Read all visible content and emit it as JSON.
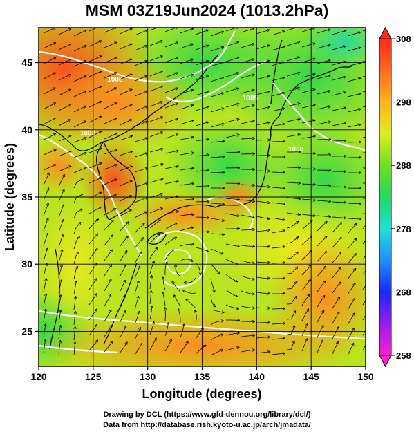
{
  "title": "MSM 03Z19Jun2024 (1013.2hPa)",
  "credits": {
    "line1": "Drawing by DCL (https://www.gfd-dennou.org/library/dcl/)",
    "line2": "Data from http://database.rish.kyoto-u.ac.jp/arch/jmadata/"
  },
  "chart_data": {
    "type": "heatmap",
    "title": "MSM 03Z19Jun2024 (1013.2hPa)",
    "xlabel": "Longitude (degrees)",
    "ylabel": "Latitude  (degrees)",
    "xlim": [
      120,
      150
    ],
    "ylim": [
      22.4,
      47.6
    ],
    "xticks": [
      120,
      125,
      130,
      135,
      140,
      145,
      150
    ],
    "yticks": [
      25,
      30,
      35,
      40,
      45
    ],
    "grid": true,
    "colorbar": {
      "ticks": [
        258,
        268,
        278,
        288,
        298,
        308
      ],
      "range": [
        258,
        308
      ],
      "colors": [
        "#ff1fd0",
        "#9a1cf0",
        "#1b29ff",
        "#1ea0ff",
        "#1fe0d8",
        "#27d83a",
        "#7fe01e",
        "#e6ee1e",
        "#ffb21e",
        "#ff6a1e",
        "#ff2a1e"
      ]
    },
    "pressure_contours": [
      {
        "label": "1002",
        "lon": 124.5,
        "lat": 39.6
      },
      {
        "label": "1005",
        "lon": 139.4,
        "lat": 42.2
      },
      {
        "label": "1008",
        "lon": 127.0,
        "lat": 43.6
      },
      {
        "label": "1008",
        "lon": 143.6,
        "lat": 38.4
      }
    ],
    "temperature_field": [
      {
        "lon": 122.0,
        "lat": 45.5,
        "value": 304
      },
      {
        "lon": 126.0,
        "lat": 43.0,
        "value": 301
      },
      {
        "lon": 128.5,
        "lat": 37.0,
        "value": 301
      },
      {
        "lon": 121.5,
        "lat": 37.5,
        "value": 300
      },
      {
        "lon": 133.0,
        "lat": 45.5,
        "value": 290
      },
      {
        "lon": 137.0,
        "lat": 40.0,
        "value": 289
      },
      {
        "lon": 146.0,
        "lat": 46.0,
        "value": 287
      },
      {
        "lon": 146.0,
        "lat": 38.0,
        "value": 291
      },
      {
        "lon": 138.5,
        "lat": 36.0,
        "value": 298
      },
      {
        "lon": 133.0,
        "lat": 34.5,
        "value": 300
      },
      {
        "lon": 131.0,
        "lat": 30.0,
        "value": 297
      },
      {
        "lon": 124.0,
        "lat": 30.0,
        "value": 295
      },
      {
        "lon": 138.0,
        "lat": 28.5,
        "value": 298
      },
      {
        "lon": 146.0,
        "lat": 30.0,
        "value": 300
      },
      {
        "lon": 130.0,
        "lat": 24.0,
        "value": 301
      },
      {
        "lon": 142.0,
        "lat": 24.0,
        "value": 302
      }
    ]
  }
}
